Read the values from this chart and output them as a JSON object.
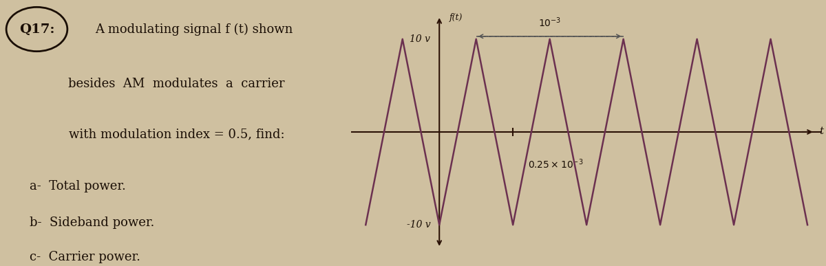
{
  "bg_color": "#cfc0a0",
  "text_color": "#1a0e05",
  "title_q": "Q17:",
  "line1": "A modulating signal f (t) shown",
  "line2": "besides  AM  modulates  a  carrier",
  "line3": "with modulation index = 0.5, find:",
  "line4a": "a-  Total power.",
  "line4b": "b-  Sideband power.",
  "line4c": "c-  Carrier power.",
  "graph_ylabel": "f(t)",
  "graph_xlabel": "t",
  "y_pos_label": "10 v",
  "y_neg_label": "-10 v",
  "x_tick_label": "0.25x10⁻³",
  "period_label": "10⁻³",
  "waveform_color": "#6b3050",
  "axis_color": "#2a1005",
  "dashed_color": "#555555",
  "amplitude": 10,
  "t_points": [
    -0.5,
    -0.25,
    0.0,
    0.25,
    0.5,
    0.75,
    1.0,
    1.25,
    1.5,
    1.75,
    2.0,
    2.25,
    2.5
  ],
  "y_points": [
    -10,
    10,
    -10,
    10,
    -10,
    10,
    -10,
    10,
    -10,
    10,
    -10,
    10,
    -10
  ],
  "xlim": [
    -0.6,
    2.6
  ],
  "ylim": [
    -14,
    14
  ]
}
